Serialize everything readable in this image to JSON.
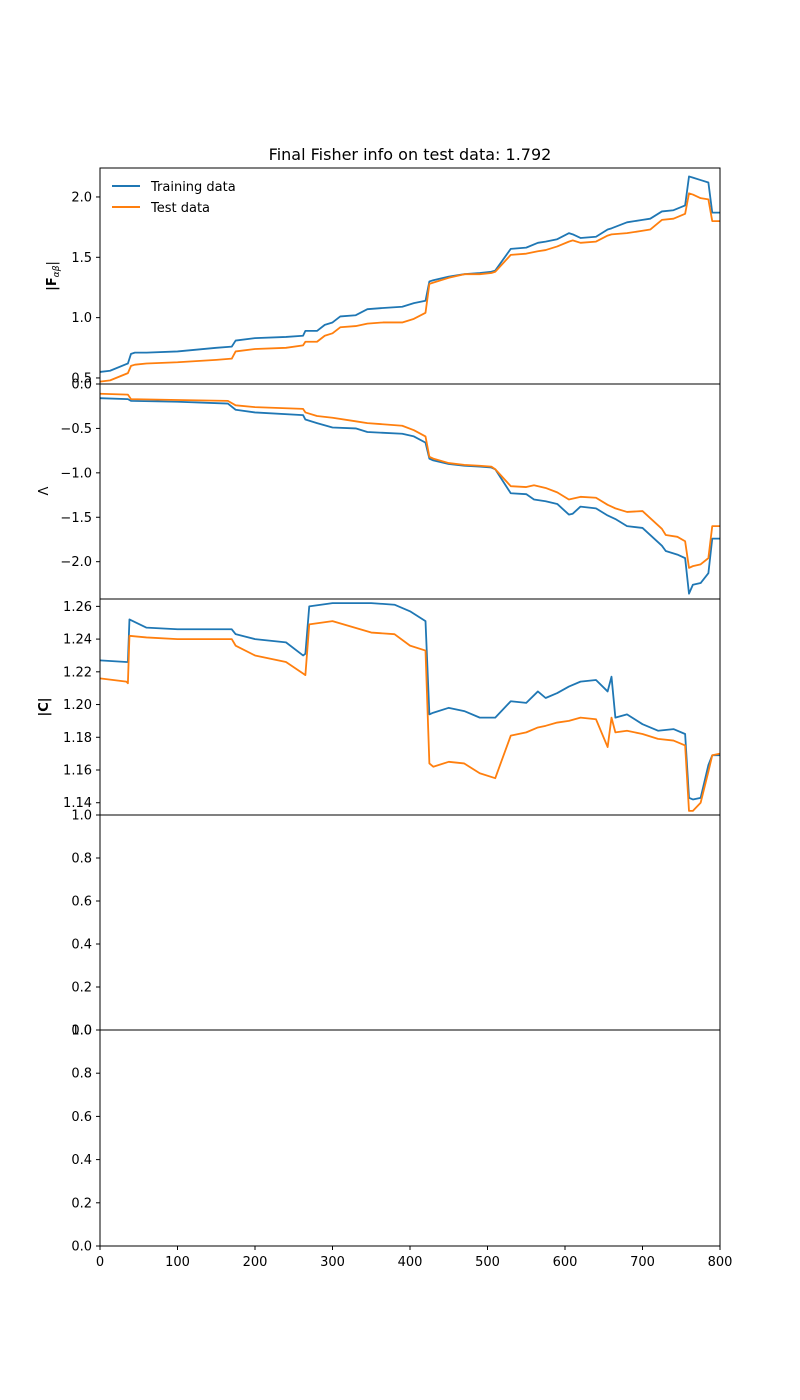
{
  "figure": {
    "title": "Final Fisher info on test data: 1.792",
    "legend": {
      "placement": "top-left",
      "frame": false
    }
  },
  "chart_data": [
    {
      "type": "line",
      "panel": "fisher-info",
      "ylabel": "|F_{αβ}|",
      "ylabel_main": "|F",
      "ylabel_sub": "αβ",
      "ylabel_close": "|",
      "xlim": [
        0,
        800
      ],
      "ylim": [
        0.45,
        2.24
      ],
      "y_ticks": [
        0.5,
        1.0,
        1.5,
        2.0
      ],
      "y_tick_labels": [
        "0.5",
        "1.0",
        "1.5",
        "2.0"
      ],
      "x_ticks": [],
      "series": [
        {
          "name": "Training data",
          "color": "#1f77b4",
          "x": [
            0,
            13,
            36,
            40,
            45,
            60,
            100,
            150,
            170,
            175,
            200,
            240,
            262,
            265,
            280,
            290,
            300,
            310,
            330,
            345,
            365,
            390,
            405,
            420,
            425,
            430,
            450,
            470,
            490,
            505,
            510,
            530,
            550,
            565,
            575,
            590,
            605,
            610,
            620,
            640,
            655,
            660,
            680,
            700,
            710,
            725,
            740,
            755,
            760,
            765,
            775,
            785,
            790,
            800
          ],
          "y": [
            0.55,
            0.56,
            0.62,
            0.7,
            0.71,
            0.71,
            0.72,
            0.75,
            0.76,
            0.81,
            0.83,
            0.84,
            0.85,
            0.89,
            0.89,
            0.94,
            0.96,
            1.01,
            1.02,
            1.07,
            1.08,
            1.09,
            1.12,
            1.14,
            1.3,
            1.31,
            1.34,
            1.36,
            1.37,
            1.38,
            1.39,
            1.57,
            1.58,
            1.62,
            1.63,
            1.65,
            1.7,
            1.69,
            1.66,
            1.67,
            1.73,
            1.74,
            1.79,
            1.81,
            1.82,
            1.88,
            1.89,
            1.93,
            2.17,
            2.16,
            2.14,
            2.12,
            1.87,
            1.87
          ]
        },
        {
          "name": "Test data",
          "color": "#ff7f0e",
          "x": [
            0,
            13,
            36,
            40,
            45,
            60,
            100,
            150,
            170,
            175,
            200,
            240,
            262,
            265,
            280,
            290,
            300,
            310,
            330,
            345,
            365,
            390,
            405,
            420,
            425,
            430,
            450,
            470,
            490,
            505,
            510,
            530,
            550,
            565,
            575,
            590,
            605,
            610,
            620,
            640,
            655,
            660,
            680,
            700,
            710,
            725,
            740,
            755,
            760,
            765,
            775,
            785,
            790,
            800
          ],
          "y": [
            0.47,
            0.48,
            0.54,
            0.6,
            0.61,
            0.62,
            0.63,
            0.65,
            0.66,
            0.72,
            0.74,
            0.75,
            0.77,
            0.8,
            0.8,
            0.85,
            0.87,
            0.92,
            0.93,
            0.95,
            0.96,
            0.96,
            0.99,
            1.04,
            1.28,
            1.29,
            1.33,
            1.36,
            1.36,
            1.37,
            1.38,
            1.52,
            1.53,
            1.55,
            1.56,
            1.59,
            1.63,
            1.64,
            1.62,
            1.63,
            1.68,
            1.69,
            1.7,
            1.72,
            1.73,
            1.81,
            1.82,
            1.86,
            2.03,
            2.02,
            1.99,
            1.98,
            1.8,
            1.8
          ]
        }
      ]
    },
    {
      "type": "line",
      "panel": "lambda",
      "ylabel": "Λ",
      "xlim": [
        0,
        800
      ],
      "ylim": [
        -2.42,
        0.0
      ],
      "y_ticks": [
        0.0,
        -0.5,
        -1.0,
        -1.5,
        -2.0
      ],
      "y_tick_labels": [
        "0.0",
        "−0.5",
        "−1.0",
        "−1.5",
        "−2.0"
      ],
      "x_ticks": [],
      "series": [
        {
          "name": "Training data",
          "color": "#1f77b4",
          "x": [
            0,
            36,
            40,
            100,
            165,
            175,
            200,
            262,
            265,
            280,
            300,
            330,
            345,
            390,
            405,
            420,
            425,
            430,
            450,
            470,
            490,
            505,
            510,
            530,
            550,
            560,
            575,
            590,
            605,
            610,
            620,
            640,
            655,
            665,
            680,
            700,
            725,
            730,
            745,
            755,
            760,
            765,
            775,
            785,
            790,
            800
          ],
          "y": [
            -0.16,
            -0.17,
            -0.19,
            -0.2,
            -0.22,
            -0.29,
            -0.32,
            -0.35,
            -0.4,
            -0.44,
            -0.49,
            -0.5,
            -0.54,
            -0.56,
            -0.59,
            -0.66,
            -0.84,
            -0.86,
            -0.9,
            -0.92,
            -0.93,
            -0.94,
            -0.96,
            -1.23,
            -1.24,
            -1.3,
            -1.32,
            -1.35,
            -1.47,
            -1.46,
            -1.38,
            -1.4,
            -1.48,
            -1.52,
            -1.6,
            -1.62,
            -1.82,
            -1.88,
            -1.92,
            -1.96,
            -2.36,
            -2.26,
            -2.24,
            -2.13,
            -1.74,
            -1.74
          ]
        },
        {
          "name": "Test data",
          "color": "#ff7f0e",
          "x": [
            0,
            36,
            40,
            100,
            165,
            175,
            200,
            262,
            265,
            280,
            300,
            330,
            345,
            390,
            405,
            420,
            425,
            430,
            450,
            470,
            490,
            505,
            510,
            530,
            550,
            560,
            575,
            590,
            605,
            610,
            620,
            640,
            655,
            665,
            680,
            700,
            725,
            730,
            745,
            755,
            760,
            765,
            775,
            785,
            790,
            800
          ],
          "y": [
            -0.11,
            -0.12,
            -0.17,
            -0.18,
            -0.19,
            -0.24,
            -0.26,
            -0.28,
            -0.32,
            -0.36,
            -0.38,
            -0.42,
            -0.44,
            -0.47,
            -0.52,
            -0.59,
            -0.82,
            -0.84,
            -0.89,
            -0.91,
            -0.92,
            -0.93,
            -0.96,
            -1.15,
            -1.16,
            -1.14,
            -1.17,
            -1.22,
            -1.3,
            -1.29,
            -1.27,
            -1.28,
            -1.36,
            -1.4,
            -1.44,
            -1.43,
            -1.63,
            -1.7,
            -1.72,
            -1.77,
            -2.07,
            -2.05,
            -2.03,
            -1.96,
            -1.6,
            -1.6
          ]
        }
      ]
    },
    {
      "type": "line",
      "panel": "covariance",
      "ylabel": "|C|",
      "xlim": [
        0,
        800
      ],
      "ylim": [
        1.1325,
        1.2645
      ],
      "y_ticks": [
        1.14,
        1.16,
        1.18,
        1.2,
        1.22,
        1.24,
        1.26
      ],
      "y_tick_labels": [
        "1.14",
        "1.16",
        "1.18",
        "1.20",
        "1.22",
        "1.24",
        "1.26"
      ],
      "x_ticks": [],
      "series": [
        {
          "name": "Training data",
          "color": "#1f77b4",
          "x": [
            0,
            34,
            36,
            38,
            60,
            100,
            150,
            170,
            175,
            200,
            240,
            262,
            265,
            270,
            300,
            350,
            380,
            400,
            420,
            425,
            430,
            450,
            470,
            490,
            510,
            530,
            550,
            565,
            575,
            590,
            605,
            620,
            640,
            655,
            660,
            665,
            680,
            700,
            720,
            740,
            755,
            760,
            765,
            775,
            785,
            790,
            800
          ],
          "y": [
            1.227,
            1.226,
            1.226,
            1.252,
            1.247,
            1.246,
            1.246,
            1.246,
            1.243,
            1.24,
            1.238,
            1.23,
            1.231,
            1.26,
            1.262,
            1.262,
            1.261,
            1.257,
            1.251,
            1.194,
            1.195,
            1.198,
            1.196,
            1.192,
            1.192,
            1.202,
            1.201,
            1.208,
            1.204,
            1.207,
            1.211,
            1.214,
            1.215,
            1.208,
            1.217,
            1.192,
            1.194,
            1.188,
            1.184,
            1.185,
            1.182,
            1.143,
            1.142,
            1.143,
            1.163,
            1.169,
            1.169
          ]
        },
        {
          "name": "Test data",
          "color": "#ff7f0e",
          "x": [
            0,
            34,
            36,
            38,
            60,
            100,
            150,
            170,
            175,
            200,
            240,
            262,
            265,
            270,
            300,
            350,
            380,
            400,
            420,
            425,
            430,
            450,
            470,
            490,
            510,
            530,
            550,
            565,
            575,
            590,
            605,
            620,
            640,
            655,
            660,
            665,
            680,
            700,
            720,
            740,
            755,
            760,
            765,
            775,
            785,
            790,
            800
          ],
          "y": [
            1.216,
            1.214,
            1.213,
            1.242,
            1.241,
            1.24,
            1.24,
            1.24,
            1.236,
            1.23,
            1.226,
            1.219,
            1.218,
            1.249,
            1.251,
            1.244,
            1.243,
            1.236,
            1.233,
            1.164,
            1.162,
            1.165,
            1.164,
            1.158,
            1.155,
            1.181,
            1.183,
            1.186,
            1.187,
            1.189,
            1.19,
            1.192,
            1.191,
            1.174,
            1.192,
            1.183,
            1.184,
            1.182,
            1.179,
            1.178,
            1.175,
            1.135,
            1.135,
            1.14,
            1.159,
            1.169,
            1.17
          ]
        }
      ]
    },
    {
      "type": "line",
      "panel": "empty-4",
      "xlim": [
        0,
        800
      ],
      "ylim": [
        0.0,
        1.0
      ],
      "y_ticks": [
        0.0,
        0.2,
        0.4,
        0.6,
        0.8,
        1.0
      ],
      "y_tick_labels": [
        "0.0",
        "0.2",
        "0.4",
        "0.6",
        "0.8",
        "1.0"
      ],
      "x_ticks": [],
      "series": []
    },
    {
      "type": "line",
      "panel": "empty-5",
      "xlim": [
        0,
        800
      ],
      "ylim": [
        0.0,
        1.0
      ],
      "y_ticks": [
        0.0,
        0.2,
        0.4,
        0.6,
        0.8,
        1.0
      ],
      "y_tick_labels": [
        "0.0",
        "0.2",
        "0.4",
        "0.6",
        "0.8",
        "1.0"
      ],
      "x_ticks": [
        0,
        100,
        200,
        300,
        400,
        500,
        600,
        700,
        800
      ],
      "x_tick_labels": [
        "0",
        "100",
        "200",
        "300",
        "400",
        "500",
        "600",
        "700",
        "800"
      ],
      "series": []
    }
  ]
}
